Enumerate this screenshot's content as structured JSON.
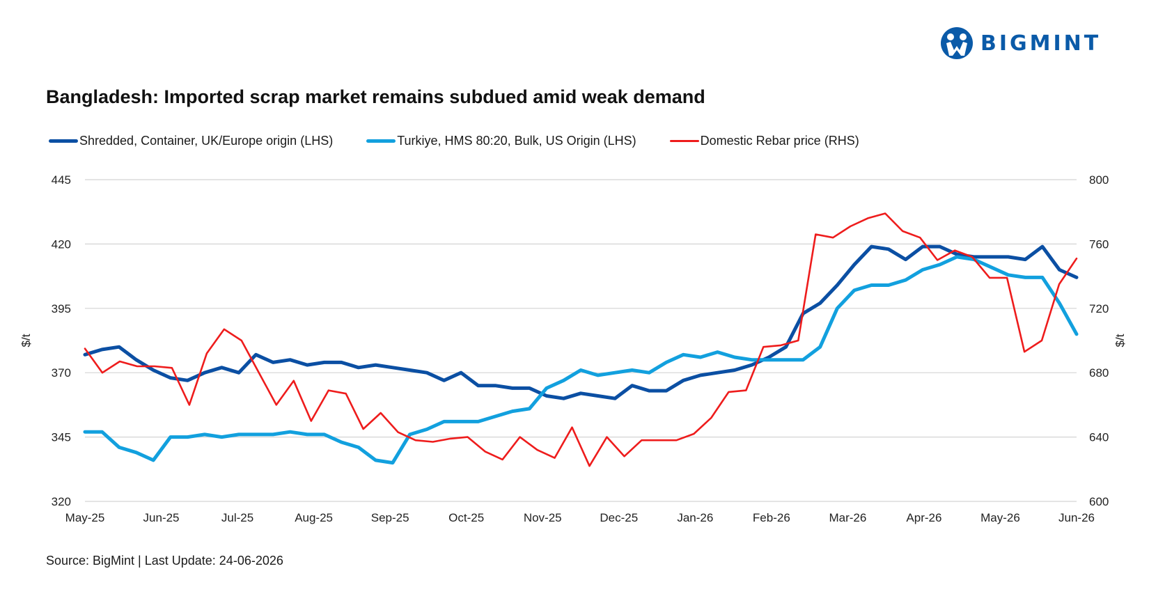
{
  "brand": {
    "name": "BIGMINT",
    "color": "#0a5aa8"
  },
  "chart_data": {
    "type": "line",
    "title": "Bangladesh: Imported scrap market remains subdued amid weak demand",
    "ylabel_left": "$/t",
    "ylabel_right": "$/t",
    "ylim_left": [
      320,
      445
    ],
    "ylim_right": [
      600,
      800
    ],
    "yticks_left": [
      "445",
      "420",
      "395",
      "370",
      "345",
      "320"
    ],
    "yticks_right": [
      "800",
      "760",
      "720",
      "680",
      "640",
      "600"
    ],
    "grid": true,
    "legend_position": "top",
    "x_tick_labels": [
      "May-25",
      "Jun-25",
      "Jul-25",
      "Aug-25",
      "Sep-25",
      "Oct-25",
      "Nov-25",
      "Dec-25",
      "Jan-26",
      "Feb-26",
      "Mar-26",
      "Apr-26",
      "May-26",
      "Jun-26"
    ],
    "series": [
      {
        "name": "Shredded, Container, UK/Europe origin (LHS)",
        "axis": "left",
        "color": "#0b4fa3",
        "values": [
          377,
          379,
          380,
          375,
          371,
          368,
          367,
          370,
          372,
          370,
          377,
          374,
          375,
          373,
          374,
          374,
          372,
          373,
          372,
          371,
          370,
          367,
          370,
          365,
          365,
          364,
          364,
          361,
          360,
          362,
          361,
          360,
          365,
          363,
          363,
          367,
          369,
          370,
          371,
          373,
          376,
          380,
          393,
          397,
          404,
          412,
          419,
          418,
          414,
          419,
          419,
          416,
          415,
          415,
          415,
          414,
          419,
          410,
          407
        ]
      },
      {
        "name": "Turkiye, HMS 80:20, Bulk, US Origin (LHS)",
        "axis": "left",
        "color": "#12a0de",
        "values": [
          347,
          347,
          341,
          339,
          336,
          345,
          345,
          346,
          345,
          346,
          346,
          346,
          347,
          346,
          346,
          343,
          341,
          336,
          335,
          346,
          348,
          351,
          351,
          351,
          353,
          355,
          356,
          364,
          367,
          371,
          369,
          370,
          371,
          370,
          374,
          377,
          376,
          378,
          376,
          375,
          375,
          375,
          375,
          380,
          395,
          402,
          404,
          404,
          406,
          410,
          412,
          415,
          414,
          411,
          408,
          407,
          407,
          397,
          385
        ]
      },
      {
        "name": "Domestic Rebar price (RHS)",
        "axis": "right",
        "color": "#ee1c1c",
        "values": [
          695,
          680,
          687,
          684,
          684,
          683,
          660,
          692,
          707,
          700,
          680,
          660,
          675,
          650,
          669,
          667,
          645,
          655,
          643,
          638,
          637,
          639,
          640,
          631,
          626,
          640,
          632,
          627,
          646,
          622,
          640,
          628,
          638,
          638,
          638,
          642,
          652,
          668,
          669,
          696,
          697,
          700,
          766,
          764,
          771,
          776,
          779,
          768,
          764,
          750,
          756,
          752,
          739,
          739,
          693,
          700,
          735,
          751
        ]
      }
    ]
  },
  "source": "Source: BigMint | Last Update: 24-06-2026"
}
